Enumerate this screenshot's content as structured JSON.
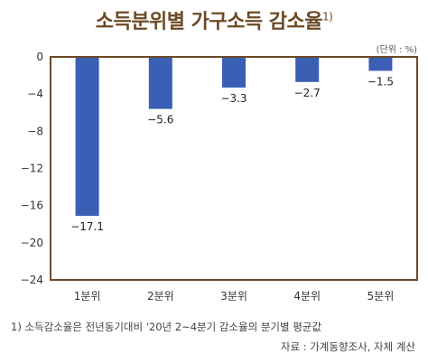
{
  "title": "소득분위별 가구소득 감소율",
  "title_note": "1)",
  "unit": "(단위 : %)",
  "footnote": "1) 소득감소율은 전년동기대비 '20년 2~4분기 감소율의 분기별 평균값",
  "source": "자료 : 가계동향조사, 자체 계산",
  "colors": {
    "bar": "#3a5fb4",
    "frame": "#6b4a26",
    "title": "#6b4a26"
  },
  "chart_data": {
    "type": "bar",
    "categories": [
      "1분위",
      "2분위",
      "3분위",
      "4분위",
      "5분위"
    ],
    "values": [
      -17.1,
      -5.6,
      -3.3,
      -2.7,
      -1.5
    ],
    "data_labels": [
      "−17.1",
      "−5.6",
      "−3.3",
      "−2.7",
      "−1.5"
    ],
    "yticks": [
      0,
      -4,
      -8,
      -12,
      -16,
      -20,
      -24
    ],
    "ytick_labels": [
      "0",
      "−4",
      "−8",
      "−12",
      "−16",
      "−20",
      "−24"
    ],
    "ylim": [
      -24,
      0
    ],
    "grid": false,
    "legend": "none"
  }
}
